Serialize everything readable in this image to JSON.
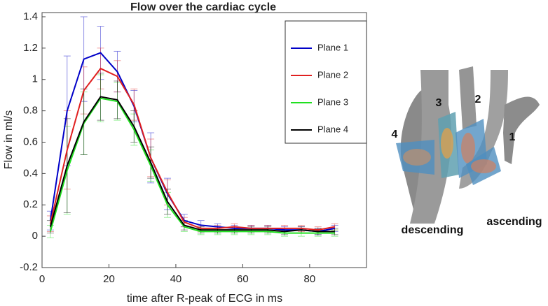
{
  "chart_data": {
    "type": "line",
    "title": "Flow over the cardiac cycle",
    "x_label": "time after R-peak of ECG in ms",
    "y_label": "Flow in ml/s",
    "x": [
      2.5,
      7.5,
      12.5,
      17.5,
      22.5,
      27.5,
      32.5,
      37.5,
      42.5,
      47.5,
      52.5,
      57.5,
      62.5,
      67.5,
      72.5,
      77.5,
      82.5,
      87.5
    ],
    "series": [
      {
        "name": "Plane 1",
        "color": "#0000c8",
        "values": [
          0.1,
          0.8,
          1.13,
          1.17,
          1.05,
          0.83,
          0.5,
          0.27,
          0.1,
          0.07,
          0.06,
          0.05,
          0.05,
          0.05,
          0.04,
          0.04,
          0.03,
          0.05
        ],
        "errors": [
          0.06,
          0.35,
          0.27,
          0.17,
          0.13,
          0.1,
          0.16,
          0.1,
          0.04,
          0.03,
          0.02,
          0.02,
          0.02,
          0.02,
          0.02,
          0.02,
          0.02,
          0.02
        ]
      },
      {
        "name": "Plane 2",
        "color": "#e02020",
        "values": [
          0.08,
          0.55,
          0.93,
          1.07,
          1.02,
          0.84,
          0.5,
          0.28,
          0.09,
          0.05,
          0.05,
          0.06,
          0.05,
          0.05,
          0.05,
          0.05,
          0.04,
          0.06
        ],
        "errors": [
          0.05,
          0.25,
          0.15,
          0.13,
          0.1,
          0.1,
          0.12,
          0.08,
          0.03,
          0.02,
          0.02,
          0.02,
          0.02,
          0.02,
          0.02,
          0.02,
          0.02,
          0.02
        ]
      },
      {
        "name": "Plane 3",
        "color": "#20e020",
        "values": [
          0.03,
          0.42,
          0.72,
          0.88,
          0.86,
          0.68,
          0.45,
          0.2,
          0.06,
          0.03,
          0.03,
          0.03,
          0.03,
          0.03,
          0.02,
          0.02,
          0.02,
          0.02
        ],
        "errors": [
          0.04,
          0.28,
          0.2,
          0.15,
          0.12,
          0.1,
          0.1,
          0.08,
          0.03,
          0.02,
          0.02,
          0.02,
          0.02,
          0.02,
          0.02,
          0.02,
          0.02,
          0.02
        ]
      },
      {
        "name": "Plane 4",
        "color": "#000000",
        "values": [
          0.06,
          0.45,
          0.73,
          0.89,
          0.87,
          0.7,
          0.47,
          0.22,
          0.07,
          0.04,
          0.04,
          0.04,
          0.04,
          0.04,
          0.03,
          0.04,
          0.03,
          0.03
        ],
        "errors": [
          0.04,
          0.3,
          0.21,
          0.15,
          0.12,
          0.1,
          0.1,
          0.08,
          0.03,
          0.02,
          0.02,
          0.02,
          0.02,
          0.02,
          0.02,
          0.02,
          0.02,
          0.02
        ]
      }
    ],
    "xlim": [
      0,
      97
    ],
    "ylim": [
      -0.2,
      1.4
    ],
    "xticks": [
      0,
      20,
      40,
      60,
      80
    ],
    "yticks": [
      -0.2,
      0,
      0.2,
      0.4,
      0.6,
      0.8,
      1,
      1.2,
      1.4
    ],
    "legend": "upper right",
    "annotations": [
      "1",
      "2",
      "3",
      "4",
      "descending",
      "ascending"
    ]
  }
}
